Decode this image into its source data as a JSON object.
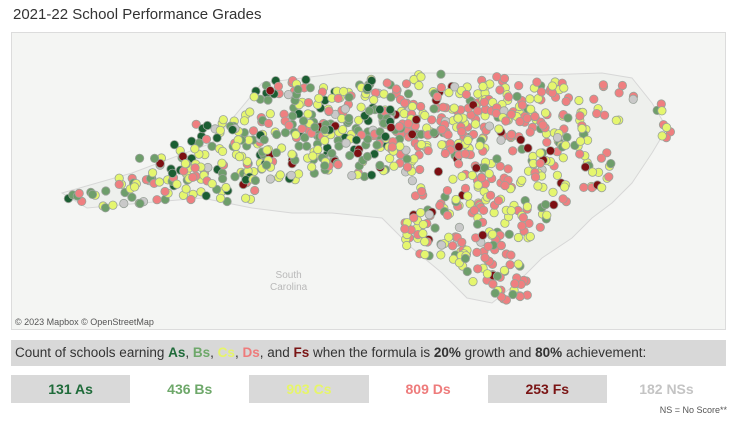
{
  "title": "2021-22 School Performance Grades",
  "map": {
    "attribution": "© 2023 Mapbox  © OpenStreetMap",
    "region_label_line1": "South",
    "region_label_line2": "Carolina"
  },
  "summary": {
    "prefix": "Count of schools earning ",
    "grade_a": "As",
    "comma1": ", ",
    "grade_b": "Bs",
    "comma2": ", ",
    "grade_c": "Cs",
    "comma3": ", ",
    "grade_d": "Ds",
    "and": ", and ",
    "grade_f": "Fs",
    "middle": " when the formula is ",
    "growth_pct": "20%",
    "growth_word": " growth and ",
    "ach_pct": "80%",
    "ach_word": " achievement:"
  },
  "tiles": [
    {
      "label": "131 As",
      "color": "#1f6b3a",
      "bg": "grey"
    },
    {
      "label": "436 Bs",
      "color": "#6ea86a",
      "bg": "white"
    },
    {
      "label": "903 Cs",
      "color": "#e6f56a",
      "bg": "grey"
    },
    {
      "label": "809 Ds",
      "color": "#ee7b7b",
      "bg": "white"
    },
    {
      "label": "253 Fs",
      "color": "#7a1515",
      "bg": "grey"
    },
    {
      "label": "182 NSs",
      "color": "#c4c4c4",
      "bg": "white"
    }
  ],
  "footnote": "NS = No Score**",
  "colors": {
    "A": "#1b5e32",
    "B": "#6e9e6b",
    "C": "#e5f66e",
    "D": "#ef7f80",
    "F": "#7d0f12",
    "NS": "#c9c9c9"
  }
}
